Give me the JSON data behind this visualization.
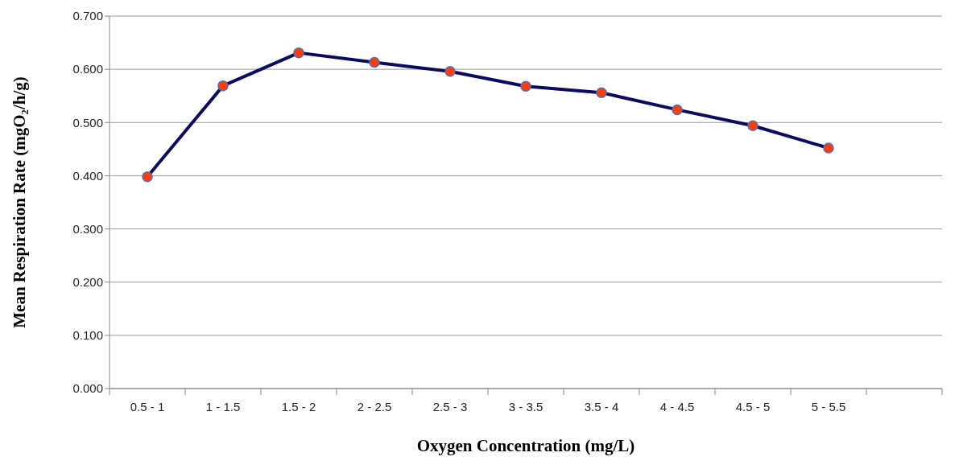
{
  "chart_data": {
    "type": "line",
    "xlabel": "Oxygen Concentration (mg/L)",
    "ylabel": "Mean Respiration Rate (mgO₂/h/g)",
    "categories": [
      "0.5 - 1",
      "1 - 1.5",
      "1.5 - 2",
      "2 - 2.5",
      "2.5 - 3",
      "3 - 3.5",
      "3.5 - 4",
      "4 - 4.5",
      "4.5 - 5",
      "5 - 5.5",
      null
    ],
    "series": [
      {
        "color": "#0a0a5e",
        "values": [
          0.398,
          0.569,
          0.631,
          0.613,
          0.596,
          0.568,
          0.556,
          0.524,
          0.494,
          0.452,
          null
        ]
      }
    ],
    "ylim": [
      0,
      0.7
    ],
    "yticks": [
      {
        "value": 0,
        "label": "0.000"
      },
      {
        "value": 0.1,
        "label": "0.100"
      },
      {
        "value": 0.2,
        "label": "0.200"
      },
      {
        "value": 0.3,
        "label": "0.300"
      },
      {
        "value": 0.4,
        "label": "0.400"
      },
      {
        "value": 0.5,
        "label": "0.500"
      },
      {
        "value": 0.6,
        "label": "0.600"
      },
      {
        "value": 0.7,
        "label": "0.700"
      }
    ],
    "grid": "y",
    "legend": false,
    "marker": "circle",
    "line_style": "solid"
  }
}
